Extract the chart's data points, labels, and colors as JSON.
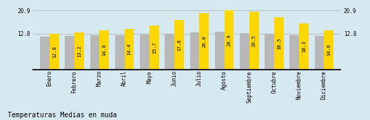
{
  "categories": [
    "Enero",
    "Febrero",
    "Marzo",
    "Abril",
    "Mayo",
    "Junio",
    "Julio",
    "Agosto",
    "Septiembre",
    "Octubre",
    "Noviembre",
    "Diciembre"
  ],
  "values": [
    12.8,
    13.2,
    14.0,
    14.4,
    15.7,
    17.6,
    20.0,
    20.9,
    20.5,
    18.5,
    16.3,
    14.0
  ],
  "gray_values": [
    11.8,
    12.0,
    12.2,
    12.2,
    12.5,
    12.8,
    13.2,
    13.5,
    13.0,
    12.8,
    12.3,
    12.0
  ],
  "bar_color_yellow": "#FFD700",
  "bar_color_gray": "#B8B8B8",
  "background_color": "#D6E8F0",
  "title": "Temperaturas Medias en muda",
  "title_fontsize": 7.0,
  "ylim_max": 20.9,
  "ytick_values": [
    12.8,
    20.9
  ],
  "ytick_labels": [
    "12.8",
    "20.9"
  ],
  "hline_color": "#BBBBBB",
  "axis_line_color": "#222222",
  "value_fontsize": 5.2,
  "label_fontsize": 5.5,
  "bar_width": 0.38
}
